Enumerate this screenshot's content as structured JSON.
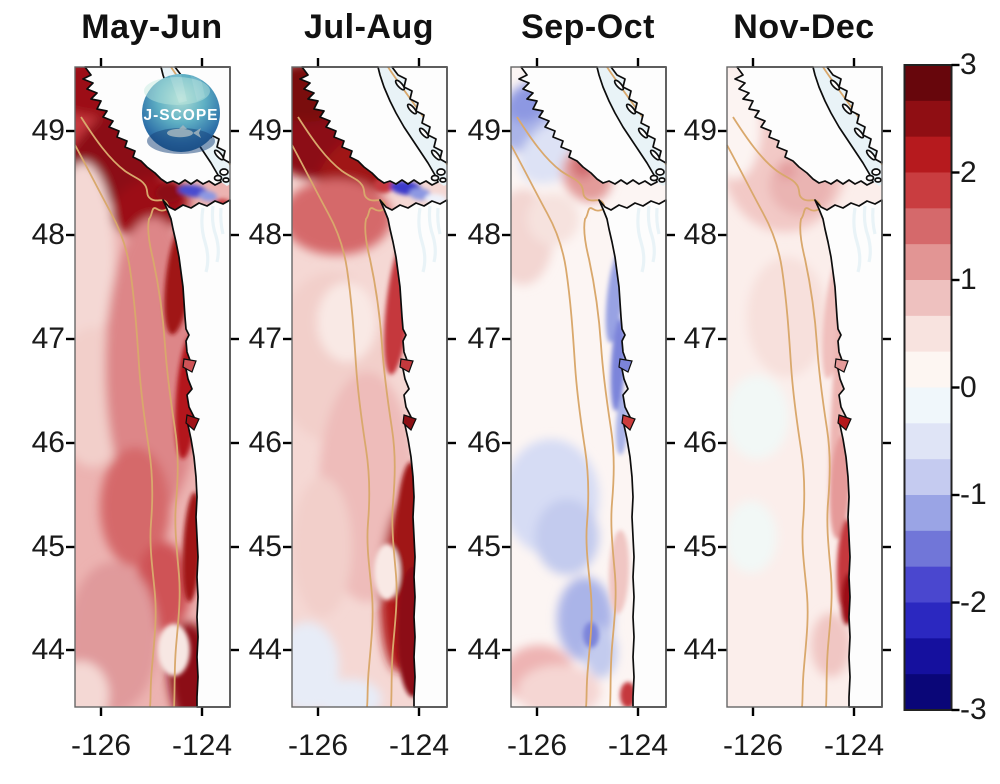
{
  "figure": {
    "background": "#ffffff"
  },
  "logo": {
    "text": "J-SCOPE"
  },
  "chart_data": {
    "type": "heatmap",
    "subtype": "geographic-anomaly-maps",
    "title": "",
    "panels": [
      {
        "label": "May-Jun",
        "summary": "Strong warm anomaly (>2 to 3) along Vancouver Island coast and nearshore Washington-Oregon; moderate warm (1-2) offshore; small cool patch in Strait of Juan de Fuca.",
        "base": "#ecb3b1",
        "soft": [
          [
            20,
            50,
            55,
            60,
            0,
            "#c5393d"
          ],
          [
            55,
            80,
            85,
            42,
            -38,
            "#8c0f14"
          ],
          [
            30,
            20,
            60,
            30,
            0,
            "#9c1116"
          ],
          [
            75,
            140,
            40,
            28,
            -20,
            "#9c1116"
          ],
          [
            8,
            190,
            32,
            95,
            0,
            "#f4d8d4"
          ],
          [
            18,
            330,
            38,
            70,
            0,
            "#f2cfca"
          ],
          [
            78,
            300,
            48,
            150,
            0,
            "#dd8688"
          ],
          [
            60,
            440,
            35,
            60,
            0,
            "#d5696b"
          ],
          [
            88,
            520,
            28,
            45,
            0,
            "#cf5357"
          ],
          [
            38,
            570,
            45,
            75,
            0,
            "#e09a9b"
          ],
          [
            6,
            628,
            28,
            34,
            0,
            "#f4d8d4"
          ],
          [
            120,
            615,
            26,
            60,
            -8,
            "#8c0f14"
          ]
        ],
        "sharp": [
          [
            104,
            210,
            13,
            58,
            7,
            "#a01217"
          ],
          [
            112,
            330,
            11,
            62,
            4,
            "#b3181c"
          ],
          [
            117,
            480,
            9,
            55,
            3,
            "#a01217"
          ],
          [
            99,
            583,
            16,
            26,
            0,
            "#f7e7e3"
          ],
          [
            94,
            126,
            13,
            9,
            0,
            "#8c0f14"
          ],
          [
            118,
            124,
            15,
            6,
            8,
            "#4a4ccf"
          ],
          [
            133,
            129,
            9,
            5,
            8,
            "#8d98e2"
          ],
          [
            147,
            137,
            9,
            5,
            0,
            "#c5393d"
          ]
        ],
        "capes": [
          "#cf5357",
          "#a01217"
        ],
        "has_logo": true
      },
      {
        "label": "Jul-Aug",
        "summary": "Very strong warm anomaly northwest offshore of Vancouver Island and along Oregon coast; pale offshore south; cool streak in Strait of Juan de Fuca; slight cool bottom-left.",
        "base": "#f5d8d4",
        "soft": [
          [
            28,
            55,
            62,
            58,
            0,
            "#8c0f14"
          ],
          [
            15,
            25,
            40,
            30,
            0,
            "#7a0a0f"
          ],
          [
            68,
            100,
            48,
            30,
            -38,
            "#a01217"
          ],
          [
            45,
            150,
            55,
            38,
            0,
            "#d5696b"
          ],
          [
            40,
            290,
            58,
            85,
            0,
            "#f2cfca"
          ],
          [
            55,
            255,
            30,
            40,
            0,
            "#f9e9e5"
          ],
          [
            75,
            420,
            48,
            115,
            0,
            "#eebcba"
          ],
          [
            30,
            480,
            30,
            70,
            0,
            "#f2cfca"
          ],
          [
            110,
            520,
            22,
            85,
            2,
            "#b21a1f"
          ],
          [
            15,
            600,
            32,
            45,
            0,
            "#e7ecf7"
          ],
          [
            58,
            632,
            32,
            20,
            0,
            "#e7ecf7"
          ]
        ],
        "sharp": [
          [
            106,
            240,
            12,
            68,
            6,
            "#c5393d"
          ],
          [
            116,
            480,
            14,
            85,
            2,
            "#a01217"
          ],
          [
            121,
            565,
            16,
            65,
            0,
            "#8c0f14"
          ],
          [
            95,
            505,
            13,
            28,
            0,
            "#f9e9e5"
          ],
          [
            92,
            118,
            10,
            8,
            0,
            "#c5393d"
          ],
          [
            114,
            121,
            16,
            7,
            7,
            "#3d3bcb"
          ],
          [
            128,
            127,
            11,
            6,
            7,
            "#8d98e2"
          ],
          [
            144,
            132,
            11,
            5,
            5,
            "#eef2fb"
          ]
        ],
        "capes": [
          "#c5393d",
          "#8c0f14"
        ],
        "has_logo": false
      },
      {
        "label": "Sep-Oct",
        "summary": "Near-neutral field; cool patch off northwest Vancouver Island, warm patch at Juan de Fuca entrance, narrow cool band hugging Washington coast, scattered weak cool blobs offshore, warm spot at Columbia mouth.",
        "base": "#fcf5f3",
        "soft": [
          [
            28,
            48,
            46,
            34,
            -35,
            "#aab4e8"
          ],
          [
            16,
            36,
            22,
            18,
            -35,
            "#8d98e2"
          ],
          [
            48,
            82,
            45,
            28,
            -35,
            "#dde2f5"
          ],
          [
            76,
            108,
            24,
            28,
            -30,
            "#e39b9a"
          ],
          [
            72,
            98,
            11,
            13,
            0,
            "#d06a6e"
          ],
          [
            12,
            170,
            30,
            48,
            0,
            "#f3d6d2"
          ],
          [
            42,
            152,
            26,
            26,
            0,
            "#f6e2de"
          ],
          [
            40,
            430,
            48,
            58,
            0,
            "#d6dcf4"
          ],
          [
            56,
            470,
            32,
            38,
            0,
            "#c3cbee"
          ],
          [
            74,
            552,
            28,
            42,
            0,
            "#aab4e8"
          ],
          [
            28,
            608,
            36,
            30,
            0,
            "#eeb4b3"
          ],
          [
            48,
            624,
            42,
            26,
            0,
            "#f5d6d3"
          ],
          [
            90,
            585,
            16,
            26,
            0,
            "#c3cbee"
          ]
        ],
        "sharp": [
          [
            104,
            230,
            8,
            46,
            6,
            "#98a2e3"
          ],
          [
            107,
            298,
            7,
            46,
            3,
            "#7c84da"
          ],
          [
            111,
            358,
            6,
            30,
            3,
            "#aab4e8"
          ],
          [
            108,
            505,
            10,
            42,
            2,
            "#f0c6c3"
          ],
          [
            80,
            568,
            8,
            13,
            0,
            "#7c84da"
          ],
          [
            117,
            628,
            8,
            13,
            0,
            "#c5393d"
          ]
        ],
        "capes": [
          "#7c84da",
          "#cc3c3c"
        ],
        "has_logo": false
      },
      {
        "label": "Nov-Dec",
        "summary": "Weak warm anomaly (0-1) nearly everywhere; pink plume near Juan de Fuca entrance; stronger warm band (1-3) along southern Washington / northern Oregon coast.",
        "base": "#fbeeeb",
        "soft": [
          [
            58,
            95,
            62,
            70,
            0,
            "#f2c9c6"
          ],
          [
            74,
            118,
            32,
            30,
            0,
            "#eab4b2"
          ],
          [
            60,
            104,
            9,
            9,
            0,
            "#e39d9e"
          ],
          [
            8,
            60,
            26,
            52,
            0,
            "#fcf4f2"
          ],
          [
            60,
            250,
            40,
            60,
            0,
            "#f7e0dc"
          ],
          [
            30,
            350,
            32,
            42,
            0,
            "#f2f8f6"
          ],
          [
            24,
            470,
            26,
            36,
            0,
            "#f2f8f6"
          ],
          [
            104,
            578,
            20,
            32,
            0,
            "#f0c6c3"
          ]
        ],
        "sharp": [
          [
            107,
            250,
            10,
            62,
            6,
            "#f0c0bd"
          ],
          [
            111,
            330,
            6,
            120,
            3,
            "#edb5b2"
          ],
          [
            113,
            420,
            10,
            52,
            3,
            "#e59a99"
          ],
          [
            119,
            498,
            9,
            46,
            2,
            "#c5393d"
          ],
          [
            121,
            532,
            7,
            26,
            2,
            "#9c1116"
          ]
        ],
        "capes": [
          "#e59a99",
          "#b3181c"
        ],
        "has_logo": false
      }
    ],
    "x": {
      "label": "",
      "ticks": [
        -126,
        -124
      ],
      "range": [
        -126.52,
        -123.45
      ]
    },
    "y": {
      "label": "",
      "ticks": [
        49,
        48,
        47,
        46,
        45,
        44
      ],
      "range": [
        43.46,
        49.62
      ]
    },
    "colorbar": {
      "range": [
        -3,
        3
      ],
      "ticks": [
        3,
        2,
        1,
        0,
        -1,
        -2,
        -3
      ],
      "segment_colors": [
        "#67060c",
        "#8f0e13",
        "#b61a1e",
        "#c93d40",
        "#d5696b",
        "#e29594",
        "#eec1bf",
        "#f8e3df",
        "#fdf6f2",
        "#f0f7fb",
        "#dfe4f6",
        "#c5cbf0",
        "#9aa4e5",
        "#7176d8",
        "#4a47cf",
        "#2b28c0",
        "#15109e",
        "#0a0678"
      ]
    },
    "map_colors": {
      "land": "#fdfdfd",
      "coast": "#0d0d0d",
      "background_water": "#e9f3f7",
      "bathymetry_contour": "#d9a86c",
      "panel_border": "#666666",
      "tick": "#000000"
    }
  }
}
